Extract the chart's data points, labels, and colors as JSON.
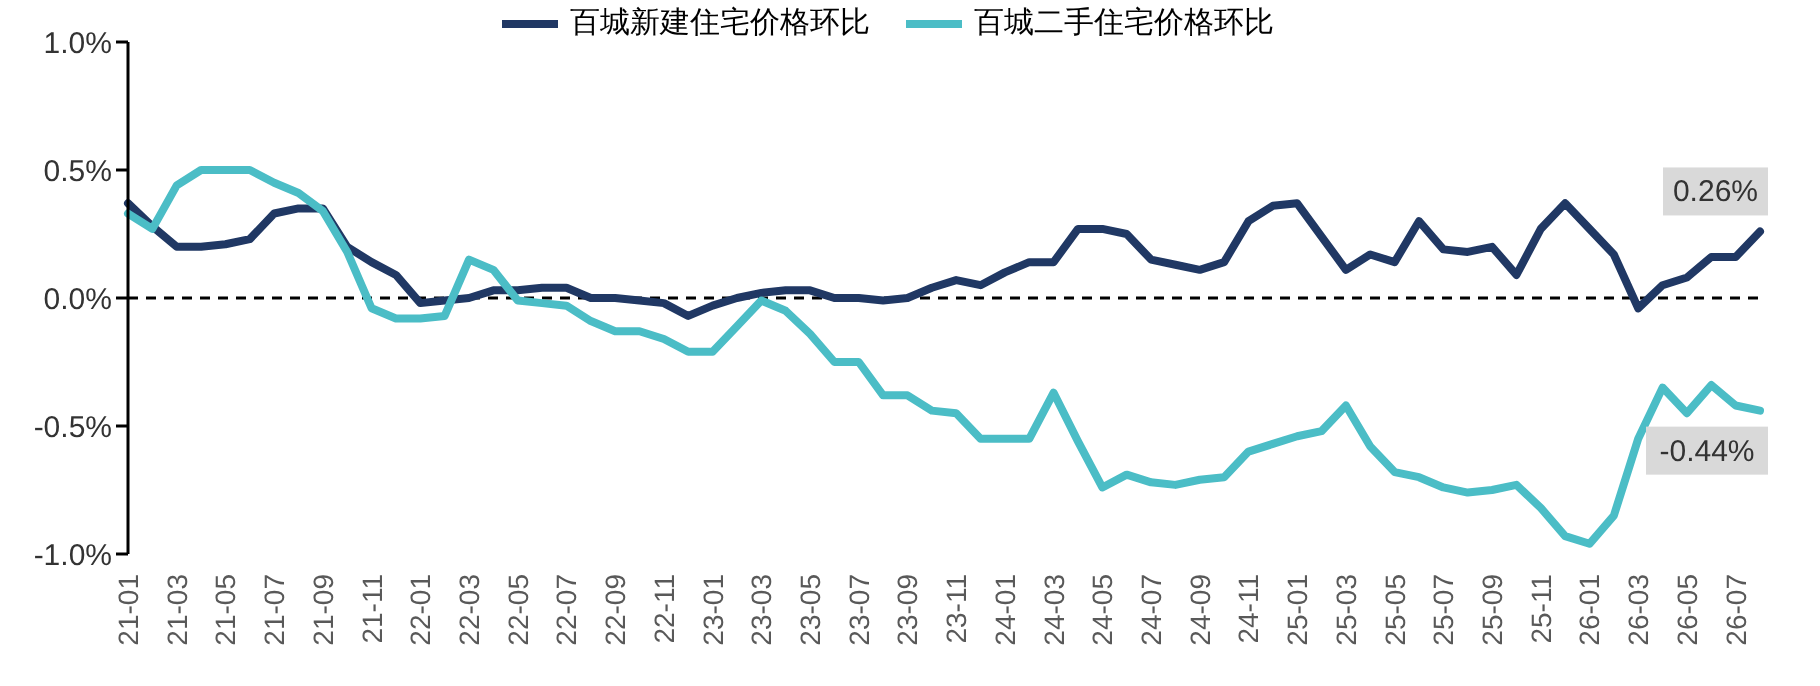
{
  "chart_data": {
    "type": "line",
    "categories": [
      "21-01",
      null,
      "21-03",
      null,
      "21-05",
      null,
      "21-07",
      null,
      "21-09",
      null,
      "21-11",
      null,
      "22-01",
      null,
      "22-03",
      null,
      "22-05",
      null,
      "22-07",
      null,
      "22-09",
      null,
      "22-11",
      null,
      "23-01",
      null,
      "23-03",
      null,
      "23-05",
      null,
      "23-07",
      null,
      "23-09",
      null,
      "23-11",
      null,
      "24-01",
      null,
      "24-03",
      null,
      "24-05",
      null,
      "24-07",
      null,
      "24-09",
      null,
      "24-11",
      null,
      "25-01",
      null,
      "25-03",
      null,
      "25-05",
      null,
      "25-07",
      null,
      "25-09",
      null,
      "25-11",
      null,
      "26-01",
      null,
      "26-03",
      null,
      "26-05",
      null,
      "26-07",
      null
    ],
    "series": [
      {
        "name": "百城新建住宅价格环比",
        "color": "#203864",
        "values": [
          0.37,
          0.28,
          0.2,
          0.2,
          0.21,
          0.23,
          0.33,
          0.35,
          0.35,
          0.2,
          0.14,
          0.09,
          -0.02,
          -0.01,
          0.0,
          0.03,
          0.03,
          0.04,
          0.04,
          0.0,
          0.0,
          -0.01,
          -0.02,
          -0.07,
          -0.03,
          0.0,
          0.02,
          0.03,
          0.03,
          0.0,
          0.0,
          -0.01,
          0.0,
          0.04,
          0.07,
          0.05,
          0.1,
          0.14,
          0.14,
          0.27,
          0.27,
          0.25,
          0.15,
          0.13,
          0.11,
          0.14,
          0.3,
          0.36,
          0.37,
          0.24,
          0.11,
          0.17,
          0.14,
          0.3,
          0.19,
          0.18,
          0.2,
          0.09,
          0.27,
          0.37,
          0.27,
          0.17,
          -0.04,
          0.05,
          0.08,
          0.16,
          0.16,
          0.26
        ],
        "value_labels": [
          null,
          null,
          null,
          null,
          null,
          null,
          null,
          null,
          null,
          null,
          null,
          null,
          null,
          null,
          null,
          null,
          null,
          null,
          null,
          null,
          null,
          null,
          null,
          null,
          null,
          null,
          null,
          null,
          null,
          null,
          null,
          null,
          null,
          null,
          null,
          null,
          null,
          null,
          null,
          null,
          null,
          null,
          null,
          null,
          null,
          null,
          null,
          null,
          null,
          null,
          null,
          null,
          null,
          null,
          null,
          null,
          null,
          null,
          null,
          null,
          null,
          null,
          null,
          null,
          null,
          null,
          null,
          "0.26%"
        ]
      },
      {
        "name": "百城二手住宅价格环比",
        "color": "#4bbdc6",
        "values": [
          0.33,
          0.27,
          0.44,
          0.5,
          0.5,
          0.5,
          0.45,
          0.41,
          0.34,
          0.18,
          -0.04,
          -0.08,
          -0.08,
          -0.07,
          0.15,
          0.11,
          -0.01,
          -0.02,
          -0.03,
          -0.09,
          -0.13,
          -0.13,
          -0.16,
          -0.21,
          -0.21,
          -0.11,
          -0.01,
          -0.05,
          -0.14,
          -0.25,
          -0.25,
          -0.38,
          -0.38,
          -0.44,
          -0.45,
          -0.55,
          -0.55,
          -0.55,
          -0.37,
          -0.56,
          -0.74,
          -0.69,
          -0.72,
          -0.73,
          -0.71,
          -0.7,
          -0.6,
          -0.57,
          -0.54,
          -0.52,
          -0.42,
          -0.58,
          -0.68,
          -0.7,
          -0.74,
          -0.76,
          -0.75,
          -0.73,
          -0.82,
          -0.93,
          -0.96,
          -0.85,
          -0.55,
          -0.35,
          -0.45,
          -0.34,
          -0.42,
          -0.44
        ],
        "value_labels": [
          null,
          null,
          null,
          null,
          null,
          null,
          null,
          null,
          null,
          null,
          null,
          null,
          null,
          null,
          null,
          null,
          null,
          null,
          null,
          null,
          null,
          null,
          null,
          null,
          null,
          null,
          null,
          null,
          null,
          null,
          null,
          null,
          null,
          null,
          null,
          null,
          null,
          null,
          null,
          null,
          null,
          null,
          null,
          null,
          null,
          null,
          null,
          null,
          null,
          null,
          null,
          null,
          null,
          null,
          null,
          null,
          null,
          null,
          null,
          null,
          null,
          null,
          null,
          null,
          null,
          null,
          null,
          "-0.44%"
        ]
      }
    ],
    "ylim": [
      -1.0,
      1.0
    ],
    "yticks": [
      {
        "value": -1.0,
        "label": "-1.0%"
      },
      {
        "value": -0.5,
        "label": "-0.5%"
      },
      {
        "value": 0,
        "label": "0.0%"
      },
      {
        "value": 0.5,
        "label": "0.5%"
      },
      {
        "value": 1.0,
        "label": "1.0%"
      }
    ],
    "ref_lines": [
      {
        "axis": "y",
        "value": 0,
        "color": "#000000",
        "line_style": "dashed"
      }
    ],
    "legend": "top",
    "grid": false,
    "marker": "none",
    "line_style": "solid"
  }
}
